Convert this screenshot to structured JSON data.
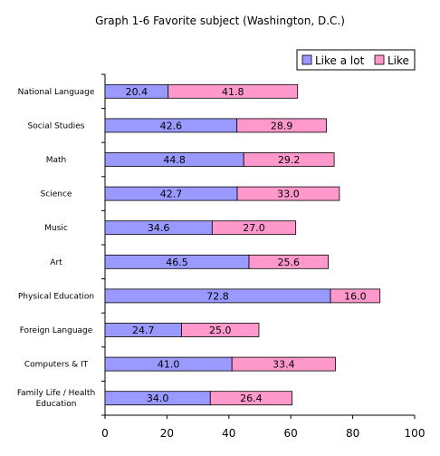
{
  "chart_data": {
    "type": "bar",
    "orientation": "horizontal",
    "stacked": true,
    "title": "Graph 1-6  Favorite subject (Washington, D.C.)",
    "categories": [
      "National Language",
      "Social Studies",
      "Math",
      "Science",
      "Music",
      "Art",
      "Physical Education",
      "Foreign Language",
      "Computers & IT",
      "Family Life / Health Education"
    ],
    "category_lines": [
      [
        "National Language"
      ],
      [
        "Social Studies"
      ],
      [
        "Math"
      ],
      [
        "Science"
      ],
      [
        "Music"
      ],
      [
        "Art"
      ],
      [
        "Physical Education"
      ],
      [
        "Foreign Language"
      ],
      [
        "Computers & IT"
      ],
      [
        "Family Life / Health",
        "Education"
      ]
    ],
    "series": [
      {
        "name": "Like a lot",
        "color": "#9999ff",
        "values": [
          20.4,
          42.6,
          44.8,
          42.7,
          34.6,
          46.5,
          72.8,
          24.7,
          41.0,
          34.0
        ],
        "labels": [
          "20.4",
          "42.6",
          "44.8",
          "42.7",
          "34.6",
          "46.5",
          "72.8",
          "24.7",
          "41.0",
          "34.0"
        ]
      },
      {
        "name": "Like",
        "color": "#ff99cc",
        "values": [
          41.8,
          28.9,
          29.2,
          33.0,
          27.0,
          25.6,
          16.0,
          25.0,
          33.4,
          26.4
        ],
        "labels": [
          "41.8",
          "28.9",
          "29.2",
          "33.0",
          "27.0",
          "25.6",
          "16.0",
          "25.0",
          "33.4",
          "26.4"
        ]
      }
    ],
    "xlim": [
      0,
      100
    ],
    "xticks": [
      0,
      20,
      40,
      60,
      80,
      100
    ],
    "xtick_labels": [
      "0",
      "20",
      "40",
      "60",
      "80",
      "100"
    ],
    "grid": false,
    "legend_position": "top-right"
  }
}
